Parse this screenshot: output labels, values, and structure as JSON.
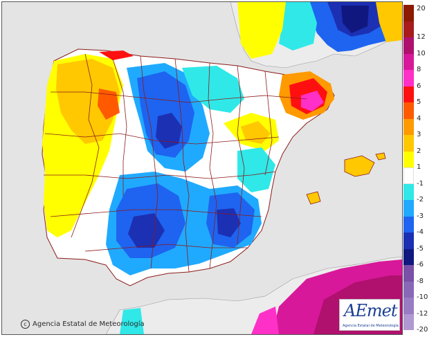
{
  "map": {
    "credit": "Agencia Estatal de Meteorología",
    "logo_text": "AEmet",
    "logo_sub": "Agencia Estatal de Meteorología"
  },
  "legend": {
    "entries": [
      {
        "label": "20",
        "color": "#8b1a00"
      },
      {
        "label": "12",
        "color": "#a81c1c"
      },
      {
        "label": "10",
        "color": "#b0106e"
      },
      {
        "label": "8",
        "color": "#d8189a"
      },
      {
        "label": "6",
        "color": "#ff30c8"
      },
      {
        "label": "5",
        "color": "#ff1010"
      },
      {
        "label": "4",
        "color": "#ff5a00"
      },
      {
        "label": "3",
        "color": "#ff9a00"
      },
      {
        "label": "2",
        "color": "#ffc800"
      },
      {
        "label": "1",
        "color": "#ffff00"
      },
      {
        "label": "-1",
        "color": "#ffffff"
      },
      {
        "label": "-2",
        "color": "#30e8e8"
      },
      {
        "label": "-3",
        "color": "#20aaff"
      },
      {
        "label": "-4",
        "color": "#1e64f0"
      },
      {
        "label": "-5",
        "color": "#1c30b4"
      },
      {
        "label": "-6",
        "color": "#101880"
      },
      {
        "label": "-8",
        "color": "#7a50a8"
      },
      {
        "label": "-10",
        "color": "#8a68b8"
      },
      {
        "label": "-12",
        "color": "#9a7cc4"
      },
      {
        "label": "-20",
        "color": "#b098d2"
      }
    ]
  }
}
